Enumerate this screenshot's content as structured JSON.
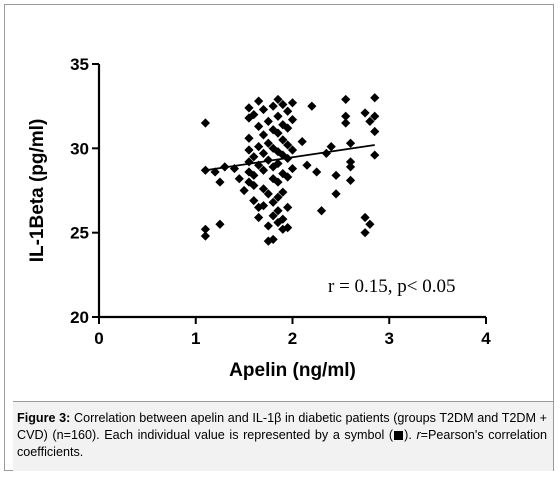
{
  "chart_data": {
    "type": "scatter",
    "xlabel": "Apelin (ng/ml)",
    "ylabel": "IL-1Beta (pg/ml)",
    "xlim": [
      0,
      4
    ],
    "ylim": [
      20,
      35
    ],
    "x_ticks": [
      "0",
      "1",
      "2",
      "3",
      "4"
    ],
    "y_ticks": [
      "20",
      "25",
      "30",
      "35"
    ],
    "annotation": "r = 0.15, p< 0.05",
    "trendline": {
      "x": [
        1.1,
        2.85
      ],
      "y": [
        28.7,
        30.2
      ]
    },
    "marker_color": "#000000",
    "points": [
      {
        "x": 1.1,
        "y": 31.5
      },
      {
        "x": 1.1,
        "y": 28.7
      },
      {
        "x": 1.1,
        "y": 25.2
      },
      {
        "x": 1.1,
        "y": 24.8
      },
      {
        "x": 1.2,
        "y": 28.6
      },
      {
        "x": 1.25,
        "y": 28.0
      },
      {
        "x": 1.25,
        "y": 25.5
      },
      {
        "x": 1.3,
        "y": 28.9
      },
      {
        "x": 1.4,
        "y": 28.8
      },
      {
        "x": 1.45,
        "y": 28.2
      },
      {
        "x": 1.5,
        "y": 27.5
      },
      {
        "x": 1.55,
        "y": 32.4
      },
      {
        "x": 1.55,
        "y": 31.8
      },
      {
        "x": 1.55,
        "y": 30.6
      },
      {
        "x": 1.55,
        "y": 29.9
      },
      {
        "x": 1.55,
        "y": 29.2
      },
      {
        "x": 1.55,
        "y": 28.6
      },
      {
        "x": 1.55,
        "y": 28.0
      },
      {
        "x": 1.6,
        "y": 32.0
      },
      {
        "x": 1.6,
        "y": 29.5
      },
      {
        "x": 1.6,
        "y": 28.4
      },
      {
        "x": 1.6,
        "y": 27.8
      },
      {
        "x": 1.6,
        "y": 26.9
      },
      {
        "x": 1.65,
        "y": 32.8
      },
      {
        "x": 1.65,
        "y": 31.3
      },
      {
        "x": 1.65,
        "y": 30.1
      },
      {
        "x": 1.65,
        "y": 29.0
      },
      {
        "x": 1.65,
        "y": 26.5
      },
      {
        "x": 1.65,
        "y": 25.9
      },
      {
        "x": 1.7,
        "y": 32.3
      },
      {
        "x": 1.7,
        "y": 30.8
      },
      {
        "x": 1.7,
        "y": 29.7
      },
      {
        "x": 1.7,
        "y": 28.7
      },
      {
        "x": 1.7,
        "y": 27.6
      },
      {
        "x": 1.7,
        "y": 26.6
      },
      {
        "x": 1.75,
        "y": 31.6
      },
      {
        "x": 1.75,
        "y": 30.3
      },
      {
        "x": 1.75,
        "y": 29.3
      },
      {
        "x": 1.75,
        "y": 27.3
      },
      {
        "x": 1.75,
        "y": 25.4
      },
      {
        "x": 1.75,
        "y": 24.5
      },
      {
        "x": 1.8,
        "y": 32.5
      },
      {
        "x": 1.8,
        "y": 31.1
      },
      {
        "x": 1.8,
        "y": 30.0
      },
      {
        "x": 1.8,
        "y": 28.9
      },
      {
        "x": 1.8,
        "y": 28.2
      },
      {
        "x": 1.8,
        "y": 26.8
      },
      {
        "x": 1.8,
        "y": 26.0
      },
      {
        "x": 1.8,
        "y": 24.6
      },
      {
        "x": 1.85,
        "y": 32.9
      },
      {
        "x": 1.85,
        "y": 31.9
      },
      {
        "x": 1.85,
        "y": 30.9
      },
      {
        "x": 1.85,
        "y": 29.8
      },
      {
        "x": 1.85,
        "y": 29.1
      },
      {
        "x": 1.85,
        "y": 28.0
      },
      {
        "x": 1.85,
        "y": 27.1
      },
      {
        "x": 1.85,
        "y": 26.3
      },
      {
        "x": 1.85,
        "y": 25.6
      },
      {
        "x": 1.9,
        "y": 32.6
      },
      {
        "x": 1.9,
        "y": 31.4
      },
      {
        "x": 1.9,
        "y": 30.5
      },
      {
        "x": 1.9,
        "y": 29.6
      },
      {
        "x": 1.9,
        "y": 28.5
      },
      {
        "x": 1.9,
        "y": 27.4
      },
      {
        "x": 1.9,
        "y": 25.8
      },
      {
        "x": 1.9,
        "y": 25.2
      },
      {
        "x": 1.95,
        "y": 32.2
      },
      {
        "x": 1.95,
        "y": 31.2
      },
      {
        "x": 1.95,
        "y": 30.2
      },
      {
        "x": 1.95,
        "y": 29.4
      },
      {
        "x": 1.95,
        "y": 28.3
      },
      {
        "x": 1.95,
        "y": 26.5
      },
      {
        "x": 1.95,
        "y": 25.3
      },
      {
        "x": 2.0,
        "y": 32.7
      },
      {
        "x": 2.0,
        "y": 31.7
      },
      {
        "x": 2.0,
        "y": 29.9
      },
      {
        "x": 2.0,
        "y": 28.8
      },
      {
        "x": 2.1,
        "y": 30.4
      },
      {
        "x": 2.15,
        "y": 29.0
      },
      {
        "x": 2.2,
        "y": 32.5
      },
      {
        "x": 2.25,
        "y": 28.6
      },
      {
        "x": 2.3,
        "y": 26.3
      },
      {
        "x": 2.35,
        "y": 29.7
      },
      {
        "x": 2.4,
        "y": 30.1
      },
      {
        "x": 2.45,
        "y": 27.3
      },
      {
        "x": 2.45,
        "y": 28.4
      },
      {
        "x": 2.55,
        "y": 32.9
      },
      {
        "x": 2.55,
        "y": 31.9
      },
      {
        "x": 2.55,
        "y": 31.5
      },
      {
        "x": 2.6,
        "y": 30.3
      },
      {
        "x": 2.6,
        "y": 29.2
      },
      {
        "x": 2.6,
        "y": 28.9
      },
      {
        "x": 2.6,
        "y": 28.1
      },
      {
        "x": 2.75,
        "y": 32.1
      },
      {
        "x": 2.75,
        "y": 25.9
      },
      {
        "x": 2.75,
        "y": 25.0
      },
      {
        "x": 2.8,
        "y": 31.6
      },
      {
        "x": 2.8,
        "y": 25.5
      },
      {
        "x": 2.85,
        "y": 33.0
      },
      {
        "x": 2.85,
        "y": 31.9
      },
      {
        "x": 2.85,
        "y": 31.0
      },
      {
        "x": 2.85,
        "y": 29.6
      }
    ]
  },
  "caption": {
    "lead": "Figure 3:",
    "text_1": " Correlation between apelin and IL-1β in diabetic patients (groups T2DM and T2DM + CVD) (n=160). Each individual value is represented by a symbol (",
    "text_2": "). ",
    "r_symbol": "r",
    "text_3": "=Pearson's correlation coefficients."
  }
}
